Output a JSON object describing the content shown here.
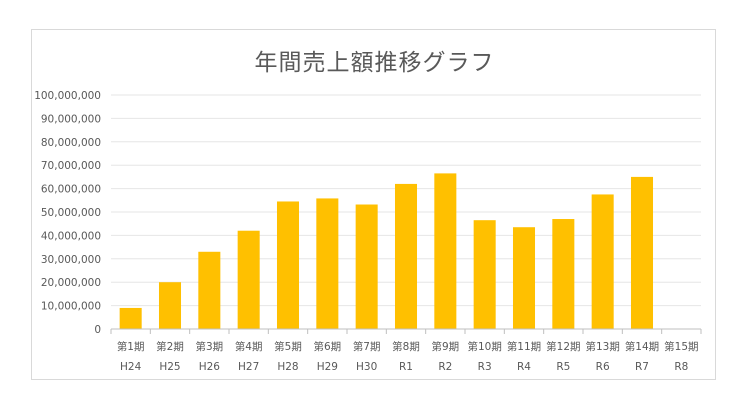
{
  "chart_data": {
    "type": "bar",
    "title": "年間売上額推移グラフ",
    "xlabel": "",
    "ylabel": "",
    "ylim": [
      0,
      100000000
    ],
    "yticks": [
      0,
      10000000,
      20000000,
      30000000,
      40000000,
      50000000,
      60000000,
      70000000,
      80000000,
      90000000,
      100000000
    ],
    "ytick_labels": [
      "0",
      "10,000,000",
      "20,000,000",
      "30,000,000",
      "40,000,000",
      "50,000,000",
      "60,000,000",
      "70,000,000",
      "80,000,000",
      "90,000,000",
      "100,000,000"
    ],
    "grid": true,
    "legend": "none",
    "bar_color": "#ffc000",
    "categories": [
      {
        "period": "第1期",
        "year": "H24"
      },
      {
        "period": "第2期",
        "year": "H25"
      },
      {
        "period": "第3期",
        "year": "H26"
      },
      {
        "period": "第4期",
        "year": "H27"
      },
      {
        "period": "第5期",
        "year": "H28"
      },
      {
        "period": "第6期",
        "year": "H29"
      },
      {
        "period": "第7期",
        "year": "H30"
      },
      {
        "period": "第8期",
        "year": "R1"
      },
      {
        "period": "第9期",
        "year": "R2"
      },
      {
        "period": "第10期",
        "year": "R3"
      },
      {
        "period": "第11期",
        "year": "R4"
      },
      {
        "period": "第12期",
        "year": "R5"
      },
      {
        "period": "第13期",
        "year": "R6"
      },
      {
        "period": "第14期",
        "year": "R7"
      },
      {
        "period": "第15期",
        "year": "R8"
      }
    ],
    "values": [
      9000000,
      20000000,
      33000000,
      42000000,
      54500000,
      55800000,
      53200000,
      62000000,
      66500000,
      46500000,
      43500000,
      47000000,
      57500000,
      65000000,
      0
    ]
  }
}
